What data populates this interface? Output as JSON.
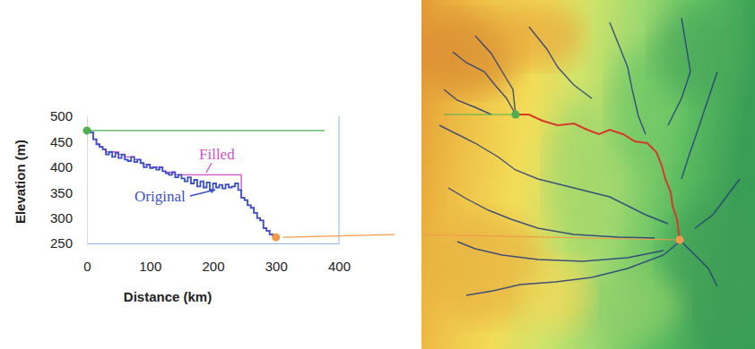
{
  "chart_data": {
    "type": "line",
    "xlabel": "Distance (km)",
    "ylabel": "Elevation (m)",
    "xlim": [
      0,
      400
    ],
    "xticks": [
      0,
      100,
      200,
      300,
      400
    ],
    "ylim": [
      250,
      500
    ],
    "yticks": [
      250,
      300,
      350,
      400,
      450,
      500
    ],
    "x": [
      0,
      5,
      10,
      15,
      20,
      25,
      30,
      35,
      40,
      45,
      50,
      55,
      60,
      65,
      70,
      75,
      80,
      85,
      90,
      95,
      100,
      105,
      110,
      115,
      120,
      125,
      130,
      135,
      140,
      145,
      150,
      155,
      160,
      165,
      170,
      175,
      180,
      185,
      190,
      195,
      200,
      205,
      210,
      215,
      220,
      225,
      230,
      235,
      240,
      245,
      250,
      255,
      260,
      265,
      270,
      275,
      280,
      285,
      290,
      295,
      300
    ],
    "series": [
      {
        "name": "Original",
        "color": "#3a4fc8",
        "line_style": "step",
        "values": [
          472,
          468,
          455,
          445,
          440,
          435,
          425,
          430,
          420,
          428,
          418,
          425,
          415,
          412,
          420,
          410,
          415,
          408,
          400,
          405,
          398,
          400,
          395,
          400,
          392,
          388,
          385,
          390,
          380,
          385,
          378,
          372,
          380,
          368,
          375,
          362,
          372,
          360,
          370,
          355,
          368,
          360,
          365,
          358,
          366,
          360,
          362,
          368,
          355,
          340,
          335,
          325,
          320,
          310,
          300,
          295,
          280,
          275,
          268,
          265,
          262
        ]
      },
      {
        "name": "Filled",
        "color": "#d050d0",
        "line_style": "step",
        "values": [
          472,
          468,
          455,
          445,
          440,
          435,
          430,
          430,
          430,
          430,
          425,
          425,
          420,
          420,
          420,
          415,
          415,
          408,
          405,
          405,
          400,
          400,
          400,
          400,
          392,
          390,
          390,
          390,
          385,
          385,
          385,
          385,
          385,
          385,
          385,
          385,
          385,
          385,
          385,
          385,
          385,
          385,
          385,
          385,
          385,
          385,
          385,
          385,
          385,
          340,
          335,
          325,
          320,
          310,
          300,
          295,
          280,
          275,
          268,
          265,
          262
        ]
      },
      {
        "type": "scatter",
        "marker": "circle",
        "colors": [
          "#4caf50",
          "#f39a4a"
        ],
        "x": [
          0,
          300
        ],
        "values": [
          472,
          262
        ]
      }
    ]
  }
}
